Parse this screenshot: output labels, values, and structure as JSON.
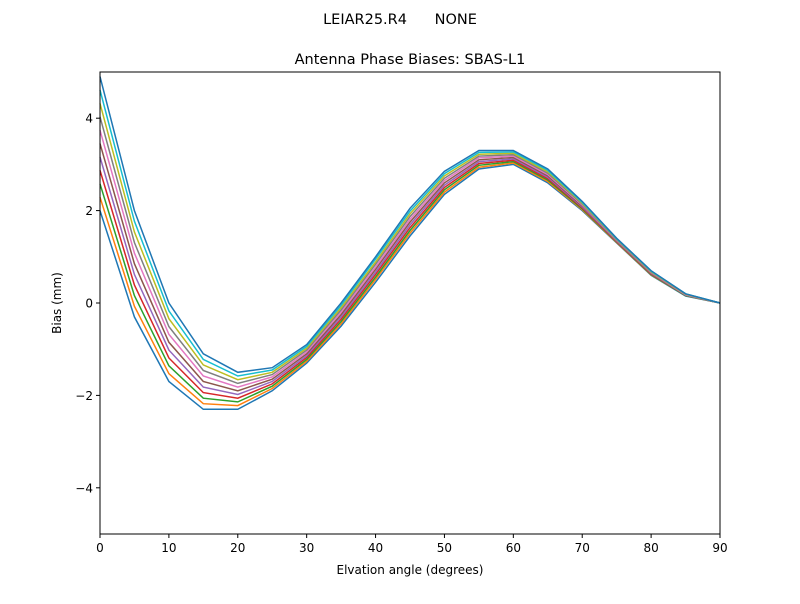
{
  "chart_data": {
    "type": "line",
    "suptitle": "LEIAR25.R4      NONE",
    "title": "Antenna Phase Biases: SBAS-L1",
    "xlabel": "Elvation angle (degrees)",
    "ylabel": "Bias (mm)",
    "xlim": [
      0,
      90
    ],
    "ylim": [
      -5,
      5
    ],
    "xticks": [
      0,
      10,
      20,
      30,
      40,
      50,
      60,
      70,
      80,
      90
    ],
    "xtick_labels": [
      "0",
      "10",
      "20",
      "30",
      "40",
      "50",
      "60",
      "70",
      "80",
      "90"
    ],
    "yticks": [
      -4,
      -2,
      0,
      2,
      4
    ],
    "ytick_labels": [
      "−4",
      "−2",
      "0",
      "2",
      "4"
    ],
    "grid": false,
    "legend": "none",
    "colors": [
      "#1f77b4",
      "#ff7f0e",
      "#2ca02c",
      "#d62728",
      "#9467bd",
      "#8c564b",
      "#e377c2",
      "#7f7f7f",
      "#bcbd22",
      "#17becf"
    ],
    "x": [
      0,
      5,
      10,
      15,
      20,
      25,
      30,
      35,
      40,
      45,
      50,
      55,
      60,
      65,
      70,
      75,
      80,
      85,
      90
    ],
    "series": [
      {
        "values": [
          2.0,
          -0.3,
          -1.7,
          -2.3,
          -2.3,
          -1.9,
          -1.3,
          -0.5,
          0.45,
          1.45,
          2.35,
          2.9,
          3.0,
          2.6,
          2.0,
          1.3,
          0.6,
          0.15,
          0
        ]
      },
      {
        "values": [
          2.29,
          -0.07,
          -1.53,
          -2.18,
          -2.22,
          -1.85,
          -1.26,
          -0.45,
          0.51,
          1.51,
          2.4,
          2.94,
          3.03,
          2.63,
          2.02,
          1.31,
          0.61,
          0.16,
          0
        ]
      },
      {
        "values": [
          2.58,
          0.16,
          -1.36,
          -2.06,
          -2.14,
          -1.8,
          -1.22,
          -0.4,
          0.56,
          1.57,
          2.45,
          2.98,
          3.06,
          2.66,
          2.04,
          1.32,
          0.62,
          0.16,
          0
        ]
      },
      {
        "values": [
          2.87,
          0.39,
          -1.19,
          -1.94,
          -2.06,
          -1.75,
          -1.18,
          -0.35,
          0.62,
          1.63,
          2.5,
          3.02,
          3.09,
          2.69,
          2.06,
          1.33,
          0.63,
          0.17,
          0
        ]
      },
      {
        "values": [
          3.16,
          0.62,
          -1.02,
          -1.82,
          -1.98,
          -1.7,
          -1.14,
          -0.3,
          0.67,
          1.69,
          2.55,
          3.06,
          3.12,
          2.72,
          2.08,
          1.34,
          0.64,
          0.17,
          0
        ]
      },
      {
        "values": [
          3.45,
          0.85,
          -0.85,
          -1.7,
          -1.9,
          -1.65,
          -1.1,
          -0.25,
          0.73,
          1.75,
          2.6,
          3.1,
          3.15,
          2.75,
          2.1,
          1.35,
          0.65,
          0.18,
          0
        ]
      },
      {
        "values": [
          3.74,
          1.08,
          -0.68,
          -1.58,
          -1.82,
          -1.6,
          -1.06,
          -0.2,
          0.78,
          1.81,
          2.65,
          3.14,
          3.18,
          2.78,
          2.12,
          1.36,
          0.66,
          0.18,
          0
        ]
      },
      {
        "values": [
          4.03,
          1.31,
          -0.51,
          -1.46,
          -1.74,
          -1.55,
          -1.02,
          -0.15,
          0.84,
          1.87,
          2.7,
          3.18,
          3.21,
          2.81,
          2.14,
          1.37,
          0.67,
          0.19,
          0
        ]
      },
      {
        "values": [
          4.32,
          1.54,
          -0.34,
          -1.34,
          -1.66,
          -1.5,
          -0.98,
          -0.1,
          0.89,
          1.93,
          2.75,
          3.22,
          3.24,
          2.84,
          2.16,
          1.38,
          0.68,
          0.19,
          0
        ]
      },
      {
        "values": [
          4.61,
          1.77,
          -0.17,
          -1.22,
          -1.58,
          -1.45,
          -0.94,
          -0.05,
          0.95,
          1.99,
          2.8,
          3.26,
          3.27,
          2.87,
          2.18,
          1.39,
          0.69,
          0.2,
          0
        ]
      },
      {
        "values": [
          4.9,
          2.0,
          0.0,
          -1.1,
          -1.5,
          -1.4,
          -0.9,
          0.0,
          1.0,
          2.05,
          2.85,
          3.3,
          3.3,
          2.9,
          2.2,
          1.4,
          0.7,
          0.2,
          0
        ]
      }
    ]
  }
}
